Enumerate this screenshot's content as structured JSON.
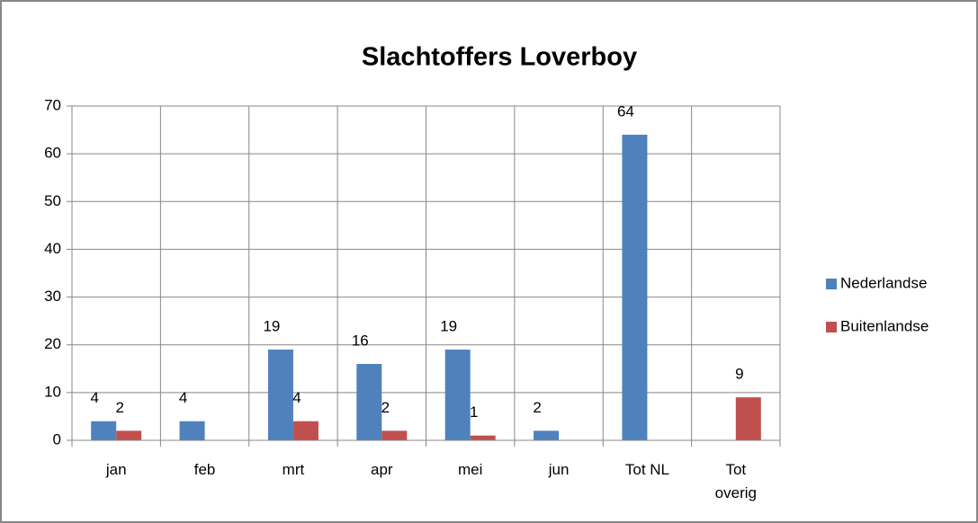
{
  "chart_data": {
    "type": "bar",
    "title": "Slachtoffers Loverboy",
    "categories": [
      "jan",
      "feb",
      "mrt",
      "apr",
      "mei",
      "jun",
      "Tot NL",
      "Tot overig"
    ],
    "series": [
      {
        "name": "Nederlandse",
        "color": "#4f81bd",
        "values": [
          4,
          4,
          19,
          16,
          19,
          2,
          64,
          null
        ]
      },
      {
        "name": "Buitenlandse",
        "color": "#c0504d",
        "values": [
          2,
          null,
          4,
          2,
          1,
          null,
          null,
          9
        ]
      }
    ],
    "ylim": [
      0,
      70
    ],
    "yticks": [
      0,
      10,
      20,
      30,
      40,
      50,
      60,
      70
    ],
    "grid": true,
    "legend": "right"
  }
}
